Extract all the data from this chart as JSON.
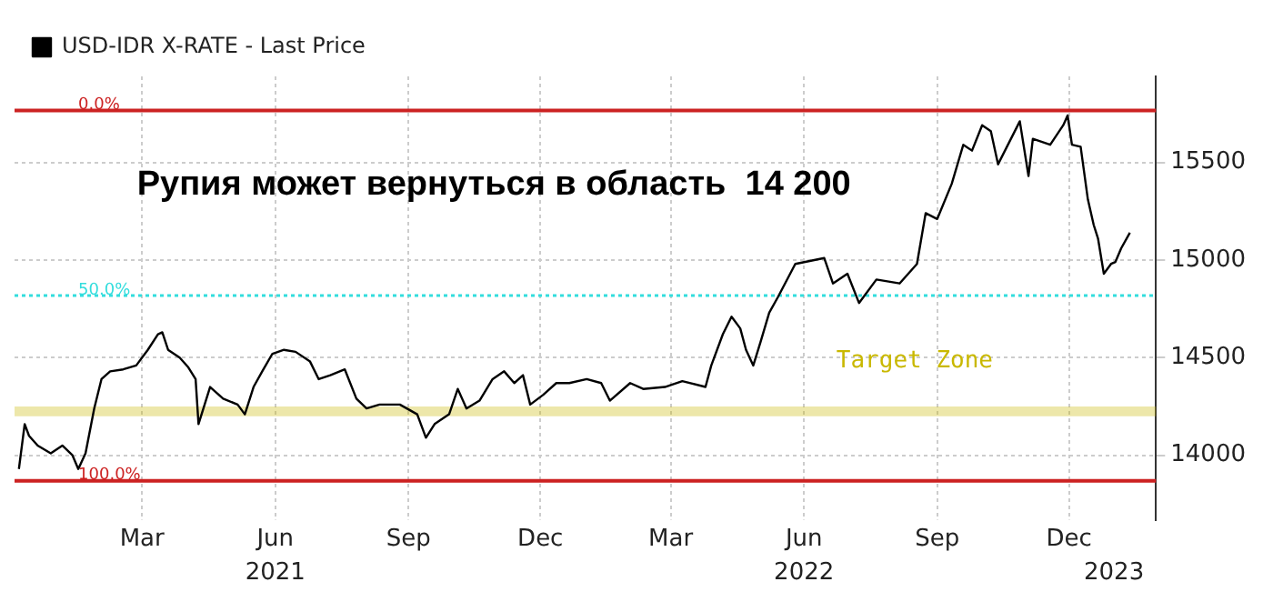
{
  "chart_data": {
    "type": "line",
    "title": "Рупия может вернуться в область  14 200",
    "x": [
      "2020-12-06",
      "2020-12-10",
      "2020-12-13",
      "2020-12-19",
      "2020-12-28",
      "2021-01-05",
      "2021-01-12",
      "2021-01-16",
      "2021-01-21",
      "2021-01-27",
      "2021-02-01",
      "2021-02-07",
      "2021-02-16",
      "2021-02-25",
      "2021-03-05",
      "2021-03-12",
      "2021-03-15",
      "2021-03-19",
      "2021-03-27",
      "2021-04-02",
      "2021-04-07",
      "2021-04-09",
      "2021-04-17",
      "2021-04-26",
      "2021-05-06",
      "2021-05-11",
      "2021-05-17",
      "2021-05-23",
      "2021-05-30",
      "2021-06-07",
      "2021-06-15",
      "2021-06-25",
      "2021-07-01",
      "2021-07-09",
      "2021-07-19",
      "2021-07-27",
      "2021-08-03",
      "2021-08-12",
      "2021-08-26",
      "2021-09-07",
      "2021-09-13",
      "2021-09-19",
      "2021-09-29",
      "2021-10-05",
      "2021-10-11",
      "2021-10-20",
      "2021-10-29",
      "2021-11-06",
      "2021-11-13",
      "2021-11-19",
      "2021-11-24",
      "2021-12-03",
      "2021-12-12",
      "2021-12-21",
      "2022-01-02",
      "2022-01-12",
      "2022-01-18",
      "2022-02-01",
      "2022-02-10",
      "2022-02-25",
      "2022-03-09",
      "2022-03-25",
      "2022-03-29",
      "2022-04-06",
      "2022-04-12",
      "2022-04-18",
      "2022-04-22",
      "2022-04-27",
      "2022-05-02",
      "2022-05-08",
      "2022-05-14",
      "2022-05-26",
      "2022-06-15",
      "2022-06-21",
      "2022-07-01",
      "2022-07-09",
      "2022-07-21",
      "2022-08-06",
      "2022-08-18",
      "2022-08-24",
      "2022-09-01",
      "2022-09-11",
      "2022-09-19",
      "2022-09-25",
      "2022-10-02",
      "2022-10-08",
      "2022-10-13",
      "2022-10-28",
      "2022-11-03",
      "2022-11-06",
      "2022-11-18",
      "2022-11-27",
      "2022-11-30",
      "2022-12-03",
      "2022-12-09",
      "2022-12-14",
      "2022-12-18",
      "2022-12-21",
      "2022-12-25",
      "2022-12-30",
      "2023-01-02",
      "2023-01-06",
      "2023-01-12"
    ],
    "series": [
      {
        "name": "USD-IDR X-RATE - Last Price",
        "color": "#000000",
        "values": [
          13930,
          14160,
          14100,
          14050,
          14010,
          14050,
          14000,
          13930,
          14010,
          14240,
          14390,
          14430,
          14440,
          14460,
          14540,
          14620,
          14630,
          14540,
          14500,
          14450,
          14390,
          14160,
          14350,
          14290,
          14260,
          14210,
          14350,
          14430,
          14520,
          14540,
          14530,
          14480,
          14390,
          14410,
          14440,
          14290,
          14240,
          14260,
          14260,
          14210,
          14090,
          14160,
          14210,
          14340,
          14240,
          14280,
          14390,
          14430,
          14370,
          14410,
          14260,
          14310,
          14370,
          14370,
          14390,
          14370,
          14280,
          14370,
          14340,
          14350,
          14380,
          14350,
          14460,
          14620,
          14710,
          14650,
          14540,
          14460,
          14580,
          14730,
          14810,
          14980,
          15010,
          14880,
          14930,
          14780,
          14900,
          14880,
          14980,
          15240,
          15210,
          15390,
          15590,
          15560,
          15690,
          15660,
          15490,
          15710,
          15430,
          15620,
          15590,
          15690,
          15740,
          15590,
          15580,
          15310,
          15180,
          15110,
          14930,
          14980,
          14990,
          15060,
          15140
        ]
      }
    ],
    "xlim": [
      "2020-12-03",
      "2023-01-30"
    ],
    "xticks": [
      {
        "value": "2021-03-01",
        "label": "Mar"
      },
      {
        "value": "2021-06-01",
        "label": "Jun"
      },
      {
        "value": "2021-09-01",
        "label": "Sep"
      },
      {
        "value": "2021-12-01",
        "label": "Dec"
      },
      {
        "value": "2022-03-01",
        "label": "Mar"
      },
      {
        "value": "2022-06-01",
        "label": "Jun"
      },
      {
        "value": "2022-09-01",
        "label": "Sep"
      },
      {
        "value": "2022-12-01",
        "label": "Dec"
      }
    ],
    "x2lim": [
      "2020-12-03",
      "2023-01-30"
    ],
    "x2ticks": [
      {
        "value": "2021-06-01",
        "label": "2021"
      },
      {
        "value": "2022-06-01",
        "label": "2022"
      },
      {
        "value": "2023-01-01",
        "label": "2023"
      }
    ],
    "ylim": [
      13670,
      15940
    ],
    "yticks": [
      14000,
      14500,
      15000,
      15500
    ],
    "ref_lines": [
      {
        "axis": "y",
        "value": 15765,
        "color": "#cc2222",
        "line_style": "solid"
      },
      {
        "axis": "y",
        "value": 14818,
        "color": "#33dddd",
        "line_style": "dotted"
      },
      {
        "axis": "y",
        "value": 13870,
        "color": "#cc2222",
        "line_style": "solid"
      }
    ],
    "annotations": [
      {
        "text": "0.0%",
        "x": "2021-01-16",
        "y": 15765
      },
      {
        "text": "50.0%",
        "x": "2021-01-16",
        "y": 14818
      },
      {
        "text": "100.0%",
        "x": "2021-01-16",
        "y": 13870
      }
    ],
    "bands": [
      {
        "axis": "y",
        "from": 14200,
        "to": 14250,
        "label": "Target Zone",
        "color": "#c9b800"
      }
    ],
    "grid": true,
    "legend": "top left",
    "marker": "none",
    "line_style": "solid"
  }
}
